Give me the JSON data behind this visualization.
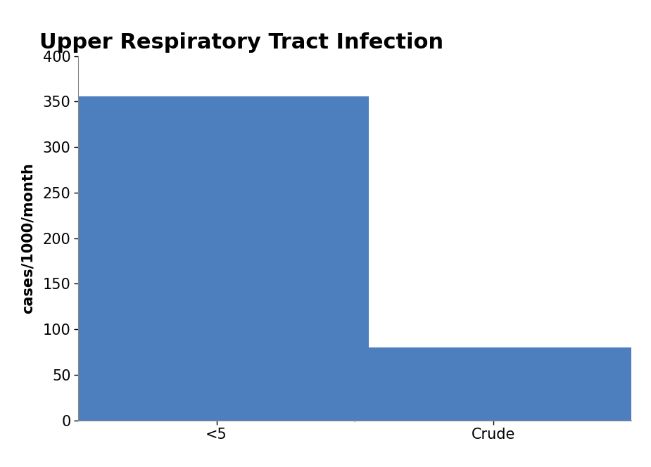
{
  "title": "Upper Respiratory Tract Infection",
  "categories": [
    "<5",
    "Crude"
  ],
  "values": [
    356,
    80
  ],
  "bar_color": "#4D7EBE",
  "ylabel": "cases/1000/month",
  "ylim": [
    0,
    400
  ],
  "yticks": [
    0,
    50,
    100,
    150,
    200,
    250,
    300,
    350,
    400
  ],
  "background_color": "#ffffff",
  "title_fontsize": 22,
  "ylabel_fontsize": 15,
  "tick_fontsize": 15,
  "bar_width": 0.55
}
